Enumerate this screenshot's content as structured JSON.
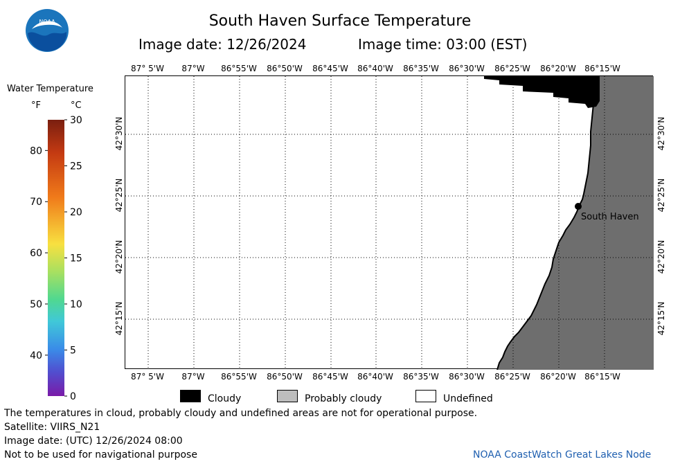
{
  "logo": {
    "text": "NOAA"
  },
  "header": {
    "title": "South Haven Surface Temperature",
    "image_date": "Image date: 12/26/2024",
    "image_time": "Image time: 03:00 (EST)"
  },
  "colorbar": {
    "title": "Water Temperature",
    "unit_f": "°F",
    "unit_c": "°C",
    "fahrenheit_ticks": [
      "80",
      "70",
      "60",
      "50",
      "40"
    ],
    "celsius_ticks": [
      "30",
      "25",
      "20",
      "15",
      "10",
      "5",
      "0"
    ],
    "range_c": [
      0,
      30
    ]
  },
  "map": {
    "lon_labels": [
      "87° 5'W",
      "87°W",
      "86°55'W",
      "86°50'W",
      "86°45'W",
      "86°40'W",
      "86°35'W",
      "86°30'W",
      "86°25'W",
      "86°20'W",
      "86°15'W"
    ],
    "lat_labels": [
      "42°30'N",
      "42°25'N",
      "42°20'N",
      "42°15'N"
    ],
    "place_label": "South Haven",
    "colors": {
      "land": "#6e6e6e",
      "cloud": "#000000",
      "water_undefined": "#ffffff"
    }
  },
  "legend": {
    "cloudy": "Cloudy",
    "probably_cloudy": "Probably cloudy",
    "undefined": "Undefined",
    "colors": {
      "cloudy": "#000000",
      "probably_cloudy": "#bdbdbd",
      "undefined": "#ffffff"
    }
  },
  "footer": {
    "note": "The temperatures in cloud, probably cloudy and undefined areas are not for operational purpose.",
    "satellite": "Satellite: VIIRS_N21",
    "utc_date": "Image date: (UTC) 12/26/2024  08:00",
    "nav_warning": "Not to be used for navigational purpose",
    "credit": "NOAA CoastWatch Great Lakes Node"
  }
}
